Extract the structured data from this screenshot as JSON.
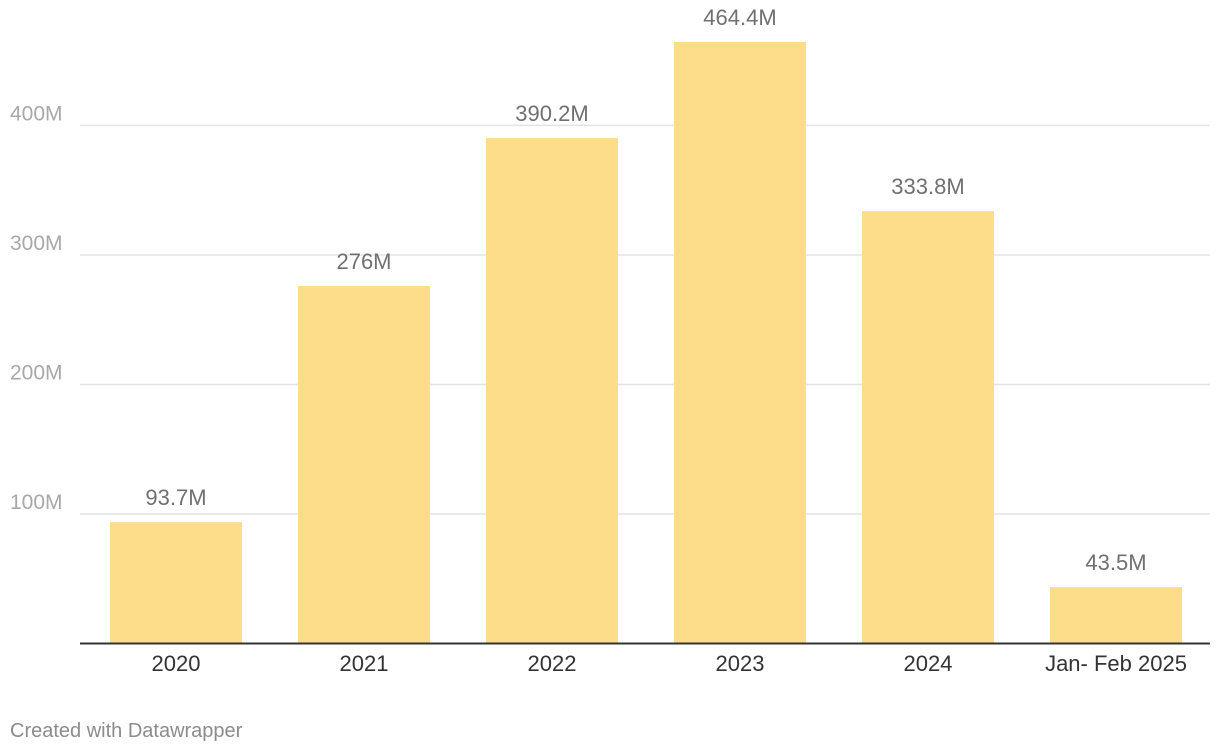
{
  "chart_data": {
    "type": "bar",
    "categories": [
      "2020",
      "2021",
      "2022",
      "2023",
      "2024",
      "Jan- Feb 2025"
    ],
    "values": [
      93.7,
      276,
      390.2,
      464.4,
      333.8,
      43.5
    ],
    "value_labels": [
      "93.7M",
      "276M",
      "390.2M",
      "464.4M",
      "333.8M",
      "43.5M"
    ],
    "y_ticks": [
      100,
      200,
      300,
      400
    ],
    "y_tick_labels": [
      "100M",
      "200M",
      "300M",
      "400M"
    ],
    "ylim": [
      0,
      480
    ],
    "grid": true,
    "bar_color": "#fddc8a",
    "gridline_color": "#e3e3e3",
    "baseline_color": "#333333",
    "value_label_color": "#707070",
    "tick_label_color": "#a8a8a8",
    "category_label_color": "#333333"
  },
  "footer": {
    "credit": "Created with Datawrapper"
  }
}
